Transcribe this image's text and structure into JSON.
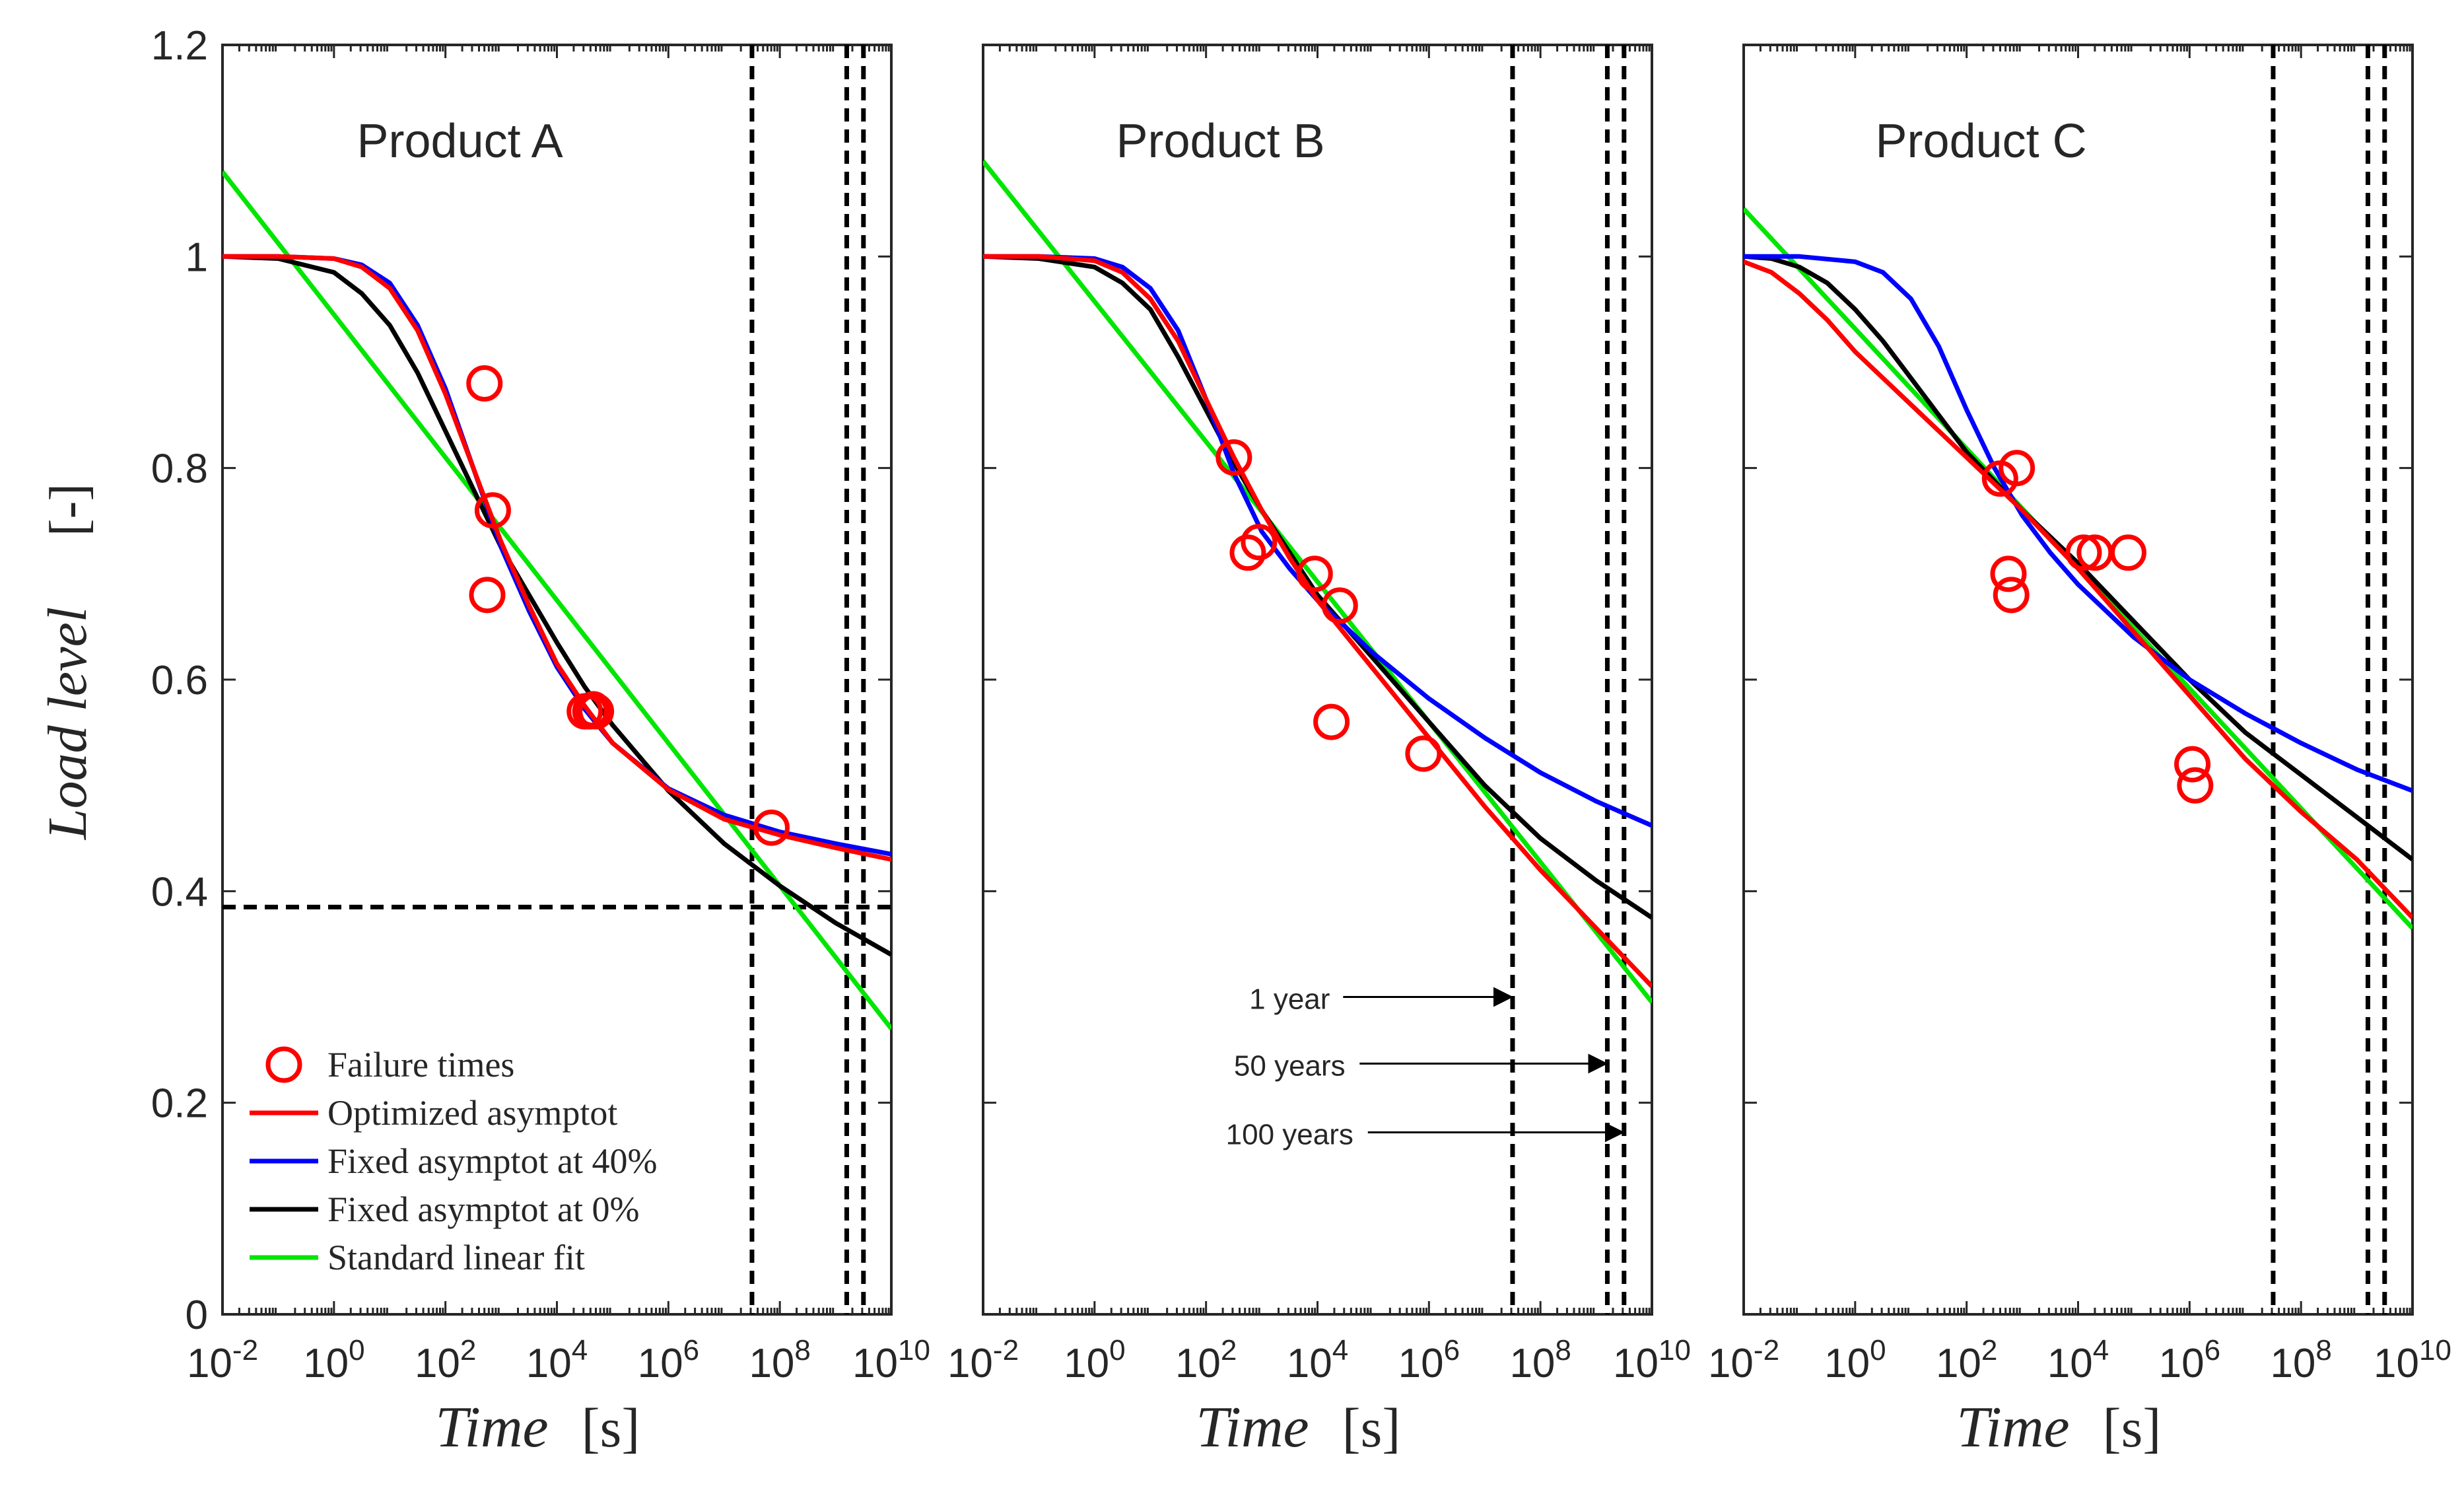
{
  "figure": {
    "ylabel_main": "Load level",
    "ylabel_unit": "[-]",
    "xlabel_main": "Time",
    "xlabel_unit": "[s]"
  },
  "chart_data": [
    {
      "type": "line",
      "title": "Product A",
      "xscale": "log",
      "xlim_exp": [
        -2,
        10
      ],
      "ylim": [
        0,
        1.2
      ],
      "y_ticks": [
        0,
        0.2,
        0.4,
        0.6,
        0.8,
        1,
        1.2
      ],
      "y_tick_labels": [
        "0",
        "0.2",
        "0.4",
        "0.6",
        "0.8",
        "1",
        "1.2"
      ],
      "x_tick_exponents": [
        -2,
        0,
        2,
        4,
        6,
        8,
        10
      ],
      "x_tick_labels": [
        "-2",
        "0",
        "2",
        "4",
        "6",
        "8",
        "10"
      ],
      "x_tick_base": "10",
      "series": [
        {
          "name": "Optimized asymptot",
          "color": "#ff0000",
          "x_exp": [
            -2,
            -1,
            0,
            0.5,
            1,
            1.5,
            2,
            2.5,
            3,
            3.5,
            4,
            4.5,
            5,
            6,
            7,
            8,
            9,
            10
          ],
          "y": [
            1.0,
            1.0,
            0.998,
            0.99,
            0.97,
            0.93,
            0.87,
            0.8,
            0.73,
            0.67,
            0.615,
            0.575,
            0.54,
            0.496,
            0.468,
            0.453,
            0.441,
            0.43
          ]
        },
        {
          "name": "Fixed asymptot at 40%",
          "color": "#0000ff",
          "x_exp": [
            -2,
            -1,
            0,
            0.5,
            1,
            1.5,
            2,
            2.5,
            3,
            3.5,
            4,
            4.5,
            5,
            6,
            7,
            8,
            9,
            10
          ],
          "y": [
            1.0,
            1.0,
            0.998,
            0.992,
            0.975,
            0.935,
            0.875,
            0.8,
            0.725,
            0.665,
            0.612,
            0.572,
            0.54,
            0.497,
            0.472,
            0.456,
            0.445,
            0.435
          ]
        },
        {
          "name": "Fixed asymptot at 0%",
          "color": "#000000",
          "x_exp": [
            -2,
            -1,
            0,
            0.5,
            1,
            1.5,
            2,
            2.5,
            3,
            3.5,
            4,
            4.5,
            5,
            6,
            7,
            8,
            9,
            10
          ],
          "y": [
            1.0,
            0.998,
            0.985,
            0.965,
            0.935,
            0.89,
            0.835,
            0.78,
            0.725,
            0.68,
            0.635,
            0.593,
            0.557,
            0.495,
            0.445,
            0.405,
            0.37,
            0.34
          ]
        },
        {
          "name": "Standard linear fit",
          "color": "#00e600",
          "x_exp": [
            -2,
            10
          ],
          "y": [
            1.08,
            0.27
          ]
        }
      ],
      "failure_times": {
        "name": "Failure times",
        "color": "#ff0000",
        "x_exp": [
          2.7,
          2.75,
          2.85,
          4.5,
          4.6,
          4.65,
          4.7,
          7.85
        ],
        "y": [
          0.88,
          0.68,
          0.76,
          0.57,
          0.57,
          0.572,
          0.57,
          0.46
        ]
      },
      "vlines_exp": [
        7.5,
        9.2,
        9.5
      ],
      "hline_y": 0.385,
      "annotations": []
    },
    {
      "type": "line",
      "title": "Product B",
      "xscale": "log",
      "xlim_exp": [
        -2,
        10
      ],
      "ylim": [
        0,
        1.2
      ],
      "x_tick_exponents": [
        -2,
        0,
        2,
        4,
        6,
        8,
        10
      ],
      "x_tick_labels": [
        "-2",
        "0",
        "2",
        "4",
        "6",
        "8",
        "10"
      ],
      "x_tick_base": "10",
      "series": [
        {
          "name": "Optimized asymptot",
          "color": "#ff0000",
          "x_exp": [
            -2,
            -1,
            0,
            0.5,
            1,
            1.5,
            2,
            2.5,
            3,
            3.5,
            4,
            5,
            6,
            7,
            8,
            9,
            10
          ],
          "y": [
            1.0,
            1.0,
            0.996,
            0.985,
            0.96,
            0.92,
            0.865,
            0.81,
            0.76,
            0.715,
            0.675,
            0.61,
            0.545,
            0.48,
            0.42,
            0.365,
            0.31
          ]
        },
        {
          "name": "Fixed asymptot at 40%",
          "color": "#0000ff",
          "x_exp": [
            -2,
            -1,
            0,
            0.5,
            1,
            1.5,
            2,
            2.5,
            3,
            3.5,
            4,
            5,
            6,
            7,
            8,
            9,
            10
          ],
          "y": [
            1.0,
            1.0,
            0.998,
            0.99,
            0.97,
            0.93,
            0.865,
            0.795,
            0.74,
            0.705,
            0.675,
            0.625,
            0.582,
            0.545,
            0.512,
            0.485,
            0.462
          ]
        },
        {
          "name": "Fixed asymptot at 0%",
          "color": "#000000",
          "x_exp": [
            -2,
            -1,
            0,
            0.5,
            1,
            1.5,
            2,
            2.5,
            3,
            3.5,
            4,
            5,
            6,
            7,
            8,
            9,
            10
          ],
          "y": [
            1.0,
            0.998,
            0.99,
            0.975,
            0.95,
            0.905,
            0.855,
            0.805,
            0.76,
            0.72,
            0.68,
            0.62,
            0.56,
            0.5,
            0.45,
            0.41,
            0.375
          ]
        },
        {
          "name": "Standard linear fit",
          "color": "#00e600",
          "x_exp": [
            -2,
            10
          ],
          "y": [
            1.09,
            0.295
          ]
        }
      ],
      "failure_times": {
        "name": "Failure times",
        "color": "#ff0000",
        "x_exp": [
          2.5,
          2.75,
          2.95,
          3.95,
          4.4,
          4.25,
          5.9
        ],
        "y": [
          0.81,
          0.72,
          0.73,
          0.7,
          0.67,
          0.56,
          0.53
        ]
      },
      "vlines_exp": [
        7.5,
        9.2,
        9.5
      ],
      "hline_y": null,
      "annotations": [
        {
          "text": "1 year",
          "text_x_exp": 3.5,
          "arrow_to_exp": 7.5,
          "y": 0.3
        },
        {
          "text": "50 years",
          "text_x_exp": 3.5,
          "arrow_to_exp": 9.2,
          "y": 0.237
        },
        {
          "text": "100 years",
          "text_x_exp": 3.5,
          "arrow_to_exp": 9.5,
          "y": 0.172
        }
      ]
    },
    {
      "type": "line",
      "title": "Product C",
      "xscale": "log",
      "xlim_exp": [
        -2,
        10
      ],
      "ylim": [
        0,
        1.2
      ],
      "x_tick_exponents": [
        -2,
        0,
        2,
        4,
        6,
        8,
        10
      ],
      "x_tick_labels": [
        "-2",
        "0",
        "2",
        "4",
        "6",
        "8",
        "10"
      ],
      "x_tick_base": "10",
      "series": [
        {
          "name": "Optimized asymptot",
          "color": "#ff0000",
          "x_exp": [
            -2,
            -1.5,
            -1,
            -0.5,
            0,
            0.5,
            1,
            1.5,
            2,
            3,
            4,
            5,
            6,
            7,
            8,
            9,
            10
          ],
          "y": [
            0.995,
            0.985,
            0.965,
            0.94,
            0.91,
            0.885,
            0.86,
            0.835,
            0.81,
            0.76,
            0.705,
            0.645,
            0.585,
            0.525,
            0.475,
            0.43,
            0.375
          ]
        },
        {
          "name": "Fixed asymptot at 40%",
          "color": "#0000ff",
          "x_exp": [
            -2,
            -1,
            0,
            0.5,
            1,
            1.5,
            2,
            2.5,
            3,
            3.5,
            4,
            5,
            6,
            7,
            8,
            9,
            10
          ],
          "y": [
            1.0,
            1.0,
            0.995,
            0.985,
            0.96,
            0.915,
            0.855,
            0.8,
            0.755,
            0.72,
            0.69,
            0.64,
            0.6,
            0.568,
            0.54,
            0.515,
            0.495
          ]
        },
        {
          "name": "Fixed asymptot at 0%",
          "color": "#000000",
          "x_exp": [
            -2,
            -1.5,
            -1,
            -0.5,
            0,
            0.5,
            1,
            1.5,
            2,
            3,
            4,
            5,
            6,
            7,
            8,
            9,
            10
          ],
          "y": [
            1.0,
            0.998,
            0.99,
            0.975,
            0.95,
            0.92,
            0.885,
            0.85,
            0.815,
            0.76,
            0.71,
            0.655,
            0.6,
            0.55,
            0.51,
            0.47,
            0.43
          ]
        },
        {
          "name": "Standard linear fit",
          "color": "#00e600",
          "x_exp": [
            -2,
            10
          ],
          "y": [
            1.045,
            0.365
          ]
        }
      ],
      "failure_times": {
        "name": "Failure times",
        "color": "#ff0000",
        "x_exp": [
          2.6,
          2.75,
          2.9,
          2.8,
          4.1,
          4.3,
          4.9,
          6.05,
          6.1
        ],
        "y": [
          0.79,
          0.7,
          0.8,
          0.68,
          0.72,
          0.72,
          0.72,
          0.52,
          0.5
        ]
      },
      "vlines_exp": [
        7.5,
        9.2,
        9.5
      ],
      "hline_y": null,
      "annotations": []
    }
  ],
  "legend": {
    "placement": "bottom-left of Product A",
    "entries": [
      {
        "label": "Failure times",
        "kind": "marker",
        "color": "#ff0000"
      },
      {
        "label": "Optimized asymptot",
        "kind": "line",
        "color": "#ff0000"
      },
      {
        "label": "Fixed asymptot at 40%",
        "kind": "line",
        "color": "#0000ff"
      },
      {
        "label": "Fixed asymptot at 0%",
        "kind": "line",
        "color": "#000000"
      },
      {
        "label": "Standard linear fit",
        "kind": "line",
        "color": "#00e600"
      }
    ]
  }
}
